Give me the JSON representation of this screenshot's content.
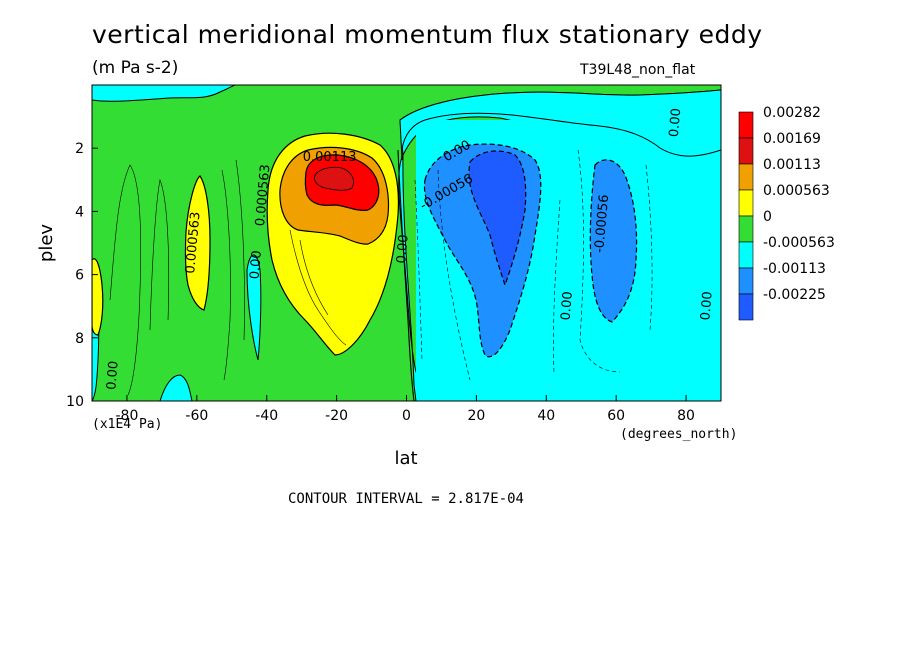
{
  "chart_data": {
    "type": "heatmap",
    "title": "vertical meridional momentum flux stationary eddy",
    "units": "(m Pa s-2)",
    "run_label": "T39L48_non_flat",
    "xlabel": "lat",
    "x_units": "(degrees_north)",
    "ylabel": "plev",
    "y_units": "(x1E4 Pa)",
    "x_ticks": [
      "-80",
      "-60",
      "-40",
      "-20",
      "0",
      "20",
      "40",
      "60",
      "80"
    ],
    "y_ticks": [
      "2",
      "4",
      "6",
      "8",
      "10"
    ],
    "xlim": [
      -90,
      90
    ],
    "ylim": [
      10,
      0
    ],
    "contour_interval_text": "CONTOUR INTERVAL = 2.817E-04",
    "colorbar": [
      {
        "label": "0.00282",
        "color": "#ff0000"
      },
      {
        "label": "0.00169",
        "color": "#dd1111"
      },
      {
        "label": "0.00113",
        "color": "#f0a000"
      },
      {
        "label": "0.000563",
        "color": "#ffff00"
      },
      {
        "label": "0",
        "color": "#33dd33"
      },
      {
        "label": "-0.000563",
        "color": "#00ffff"
      },
      {
        "label": "-0.00113",
        "color": "#1e90ff"
      },
      {
        "label": "-0.00225",
        "color": "#1e5cff"
      }
    ],
    "contour_labels": [
      {
        "text": "0.00113",
        "lat": -22,
        "plev": 2.4
      },
      {
        "text": "0.000563",
        "lat": -40,
        "plev": 3.5
      },
      {
        "text": "0.000563",
        "lat": -60,
        "plev": 5.0
      },
      {
        "text": "0.00",
        "lat": -42,
        "plev": 5.7
      },
      {
        "text": "0.00",
        "lat": -83,
        "plev": 9.2
      },
      {
        "text": "0.00",
        "lat": 0,
        "plev": 5.2
      },
      {
        "text": "0.00",
        "lat": 15,
        "plev": 2.2
      },
      {
        "text": "-0.00056",
        "lat": 12,
        "plev": 3.5
      },
      {
        "text": "0.00",
        "lat": 47,
        "plev": 7.0
      },
      {
        "text": "-0.00056",
        "lat": 57,
        "plev": 4.4
      },
      {
        "text": "0.00",
        "lat": 78,
        "plev": 1.2
      },
      {
        "text": "0.00",
        "lat": 87,
        "plev": 7.0
      }
    ]
  }
}
